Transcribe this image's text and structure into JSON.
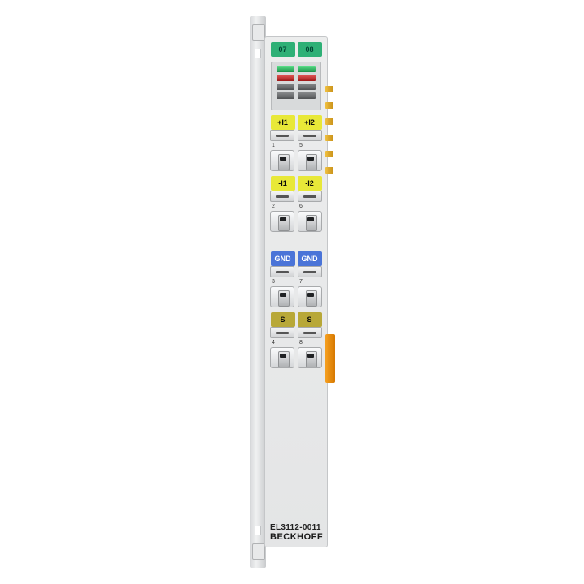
{
  "module": {
    "model": "EL3112-0011",
    "brand": "BECKHOFF",
    "body_color": "#e6e7e8",
    "rail_color": "#d5d7d9",
    "top_chips": [
      {
        "text": "07",
        "class": "green"
      },
      {
        "text": "08",
        "class": "green"
      }
    ],
    "leds": [
      [
        "g",
        "g"
      ],
      [
        "r",
        "r"
      ],
      [
        "gr",
        "gr"
      ],
      [
        "gr",
        "gr"
      ]
    ],
    "groups": [
      {
        "chips": [
          {
            "text": "+I1",
            "class": "yellow"
          },
          {
            "text": "+I2",
            "class": "yellow"
          }
        ],
        "nums": [
          "1",
          "5"
        ]
      },
      {
        "chips": [
          {
            "text": "-I1",
            "class": "yellow"
          },
          {
            "text": "-I2",
            "class": "yellow"
          }
        ],
        "nums": [
          "2",
          "6"
        ]
      },
      {
        "chips": [
          {
            "text": "GND",
            "class": "blue"
          },
          {
            "text": "GND",
            "class": "blue"
          }
        ],
        "nums": [
          "3",
          "7"
        ]
      },
      {
        "chips": [
          {
            "text": "S",
            "class": "olive"
          },
          {
            "text": "S",
            "class": "olive"
          }
        ],
        "nums": [
          "4",
          "8"
        ]
      }
    ],
    "side_pin_count": 6,
    "colors": {
      "green": "#2eb076",
      "yellow": "#e8e838",
      "blue": "#4a74d8",
      "olive": "#b8a838",
      "orange": "#f6a020",
      "gold_pin": "#f0c040"
    }
  }
}
